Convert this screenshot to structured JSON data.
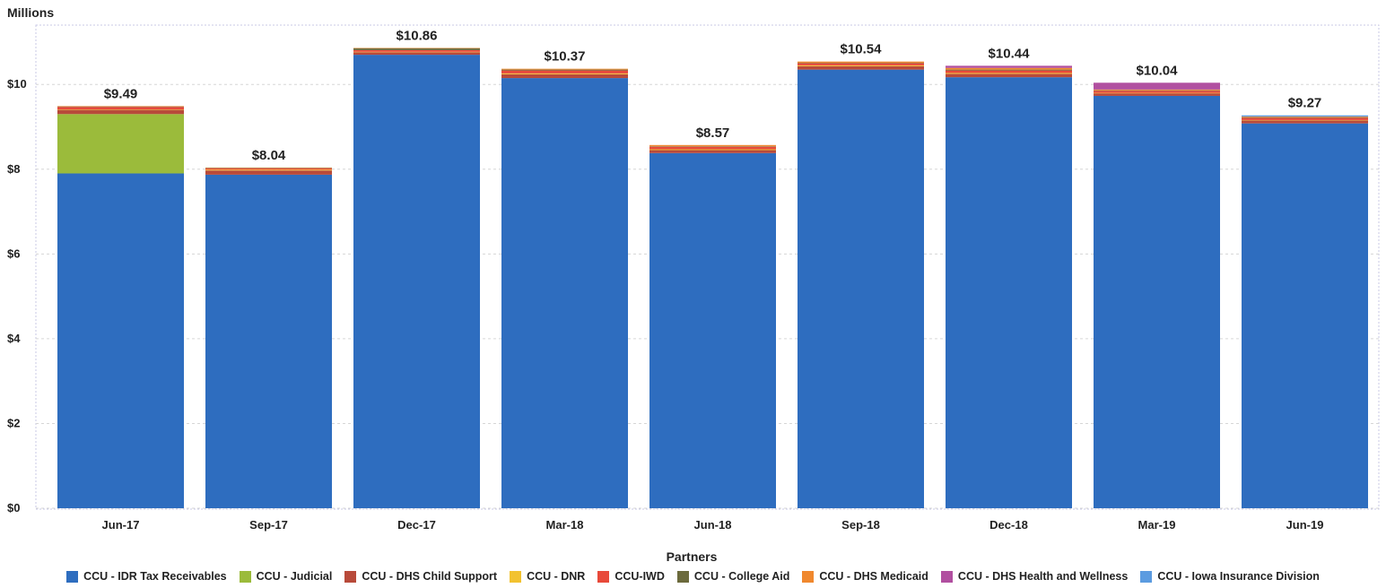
{
  "chart_data": {
    "type": "bar",
    "stacked": true,
    "title": "",
    "ylabel": "Millions",
    "xlabel": "Partners",
    "ylim": [
      0,
      11.4
    ],
    "y_ticks": [
      0,
      2,
      4,
      6,
      8,
      10
    ],
    "y_tick_labels": [
      "$0",
      "$2",
      "$4",
      "$6",
      "$8",
      "$10"
    ],
    "categories": [
      "Jun-17",
      "Sep-17",
      "Dec-17",
      "Mar-18",
      "Jun-18",
      "Sep-18",
      "Dec-18",
      "Mar-19",
      "Jun-19"
    ],
    "totals": [
      9.49,
      8.04,
      10.86,
      10.37,
      8.57,
      10.54,
      10.44,
      10.04,
      9.27
    ],
    "total_labels": [
      "$9.49",
      "$8.04",
      "$10.86",
      "$10.37",
      "$8.57",
      "$10.54",
      "$10.44",
      "$10.04",
      "$9.27"
    ],
    "grid": true,
    "legend_position": "bottom",
    "series": [
      {
        "name": "CCU - IDR Tax Receivables",
        "color": "#2E6DBF",
        "values": [
          7.9,
          7.87,
          10.7,
          10.15,
          8.38,
          10.35,
          10.17,
          9.73,
          9.08
        ]
      },
      {
        "name": "CCU - Judicial",
        "color": "#9BBB3B",
        "values": [
          1.4,
          0,
          0,
          0,
          0,
          0,
          0,
          0,
          0
        ]
      },
      {
        "name": "CCU - DHS Child Support",
        "color": "#B84A3A",
        "values": [
          0.1,
          0.1,
          0.06,
          0.09,
          0.07,
          0.08,
          0.08,
          0.06,
          0.07
        ]
      },
      {
        "name": "CCU - DNR",
        "color": "#F2C230",
        "values": [
          0.01,
          0.02,
          0.01,
          0.02,
          0.02,
          0.02,
          0.02,
          0.01,
          0.01
        ]
      },
      {
        "name": "CCU-IWD",
        "color": "#E8493A",
        "values": [
          0.06,
          0.03,
          0.04,
          0.07,
          0.06,
          0.05,
          0.06,
          0.05,
          0.05
        ]
      },
      {
        "name": "CCU - College Aid",
        "color": "#6B6A3C",
        "values": [
          0.01,
          0.01,
          0.04,
          0.02,
          0.01,
          0.01,
          0.02,
          0.01,
          0.01
        ]
      },
      {
        "name": "CCU - DHS Medicaid",
        "color": "#F0882E",
        "values": [
          0.01,
          0.01,
          0.01,
          0.02,
          0.03,
          0.03,
          0.04,
          0.02,
          0.02
        ]
      },
      {
        "name": "CCU - DHS Health and Wellness",
        "color": "#B14FA0",
        "values": [
          0,
          0,
          0,
          0,
          0,
          0,
          0.05,
          0.16,
          0
        ]
      },
      {
        "name": "CCU - Iowa Insurance Division",
        "color": "#5B9BE0",
        "values": [
          0,
          0,
          0,
          0,
          0,
          0,
          0,
          0,
          0.03
        ]
      }
    ]
  }
}
